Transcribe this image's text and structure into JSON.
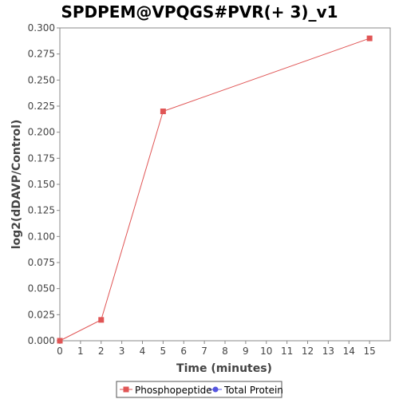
{
  "chart_data": {
    "type": "line",
    "title": "SPDPEM@VPQGS#PVR(+ 3)_v1",
    "xlabel": "Time (minutes)",
    "ylabel": "log2(dDAVP/Control)",
    "xlim": [
      0,
      16
    ],
    "ylim": [
      0,
      0.3
    ],
    "x_ticks": [
      "0",
      "1",
      "2",
      "3",
      "4",
      "5",
      "6",
      "7",
      "8",
      "9",
      "10",
      "11",
      "12",
      "13",
      "14",
      "15"
    ],
    "y_ticks": [
      "0.000",
      "0.025",
      "0.050",
      "0.075",
      "0.100",
      "0.125",
      "0.150",
      "0.175",
      "0.200",
      "0.225",
      "0.250",
      "0.275",
      "0.300"
    ],
    "grid": false,
    "legend_position": "bottom",
    "series": [
      {
        "name": "Phosphopeptide",
        "color": "#e05555",
        "marker": "square",
        "points": [
          {
            "x": 0,
            "y": 0.0
          },
          {
            "x": 2,
            "y": 0.02
          },
          {
            "x": 5,
            "y": 0.22
          },
          {
            "x": 15,
            "y": 0.29
          }
        ]
      },
      {
        "name": "Total Protein",
        "color": "#5555e0",
        "marker": "circle",
        "points": []
      }
    ]
  }
}
